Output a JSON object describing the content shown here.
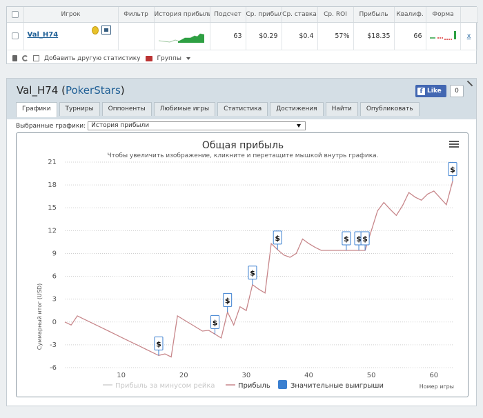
{
  "stats": {
    "columns": [
      "Игрок",
      "Фильтр",
      "История прибыли",
      "Подсчет",
      "Ср. прибыль",
      "Ср. ставка",
      "Ср. ROI",
      "Прибыль",
      "Квалиф.",
      "Форма"
    ],
    "player_name": "Val_H74",
    "player_room": "PokerStars",
    "count": "63",
    "avg_profit": "$0.29",
    "avg_stake": "$0.4",
    "avg_roi": "57%",
    "profit": "$18.35",
    "qualifier": "66",
    "remove": "x",
    "add_stat": "Добавить другую статистику",
    "groups": "Группы"
  },
  "header": {
    "player": "Val_H74",
    "room": "PokerStars",
    "like": "Like",
    "like_count": "0"
  },
  "tabs": [
    "Графики",
    "Турниры",
    "Оппоненты",
    "Любимые игры",
    "Статистика",
    "Достижения",
    "Найти",
    "Опубликовать"
  ],
  "selector": {
    "label": "Выбранные графики:",
    "value": "История прибыли"
  },
  "colors": {
    "profit_line": "#c7868a",
    "rake_line": "#d0d0d0",
    "marker_fill": "#3a7fd0",
    "sparkline": "#2ea043",
    "form_red": "#d83333"
  },
  "chart_data": {
    "type": "line",
    "title": "Общая прибыль",
    "subtitle": "Чтобы увеличить изображение, кликните и перетащите мышкой внутрь графика.",
    "xlabel": "Номер игры",
    "ylabel": "Суммарный итог (USD)",
    "xlim": [
      1,
      63
    ],
    "ylim": [
      -6,
      21
    ],
    "xticks": [
      10,
      20,
      30,
      40,
      50,
      60
    ],
    "yticks": [
      -6,
      -3,
      0,
      3,
      6,
      9,
      12,
      15,
      18,
      21
    ],
    "grid": true,
    "legend": [
      "Прибыль за минусом рейка",
      "Прибыль",
      "Значительные выигрыши"
    ],
    "series": [
      {
        "name": "Прибыль",
        "x": [
          1,
          2,
          3,
          4,
          5,
          6,
          7,
          8,
          9,
          10,
          11,
          12,
          13,
          14,
          15,
          16,
          17,
          18,
          19,
          20,
          21,
          22,
          23,
          24,
          25,
          26,
          27,
          28,
          29,
          30,
          31,
          32,
          33,
          34,
          35,
          36,
          37,
          38,
          39,
          40,
          41,
          42,
          43,
          44,
          45,
          46,
          47,
          48,
          49,
          50,
          51,
          52,
          53,
          54,
          55,
          56,
          57,
          58,
          59,
          60,
          61,
          62,
          63
        ],
        "y": [
          0,
          -0.4,
          0.8,
          0.4,
          0,
          -0.4,
          -0.8,
          -1.2,
          -1.6,
          -2,
          -2.4,
          -2.8,
          -3.2,
          -3.6,
          -4.0,
          -4.4,
          -4.2,
          -4.6,
          0.8,
          0.3,
          -0.2,
          -0.7,
          -1.2,
          -1.1,
          -1.6,
          -2.1,
          1.3,
          -0.4,
          2.0,
          1.5,
          4.9,
          4.3,
          3.8,
          10.3,
          9.5,
          8.8,
          8.5,
          9.0,
          10.9,
          10.3,
          9.8,
          9.4,
          9.4,
          9.4,
          9.4,
          9.4,
          9.4,
          9.4,
          9.4,
          12.0,
          14.6,
          15.7,
          14.8,
          14.0,
          15.3,
          17.0,
          16.4,
          16.0,
          16.8,
          17.2,
          16.3,
          15.4,
          18.5
        ]
      }
    ],
    "big_wins_x": [
      16,
      25,
      27,
      31,
      35,
      46,
      48,
      49,
      63
    ]
  }
}
